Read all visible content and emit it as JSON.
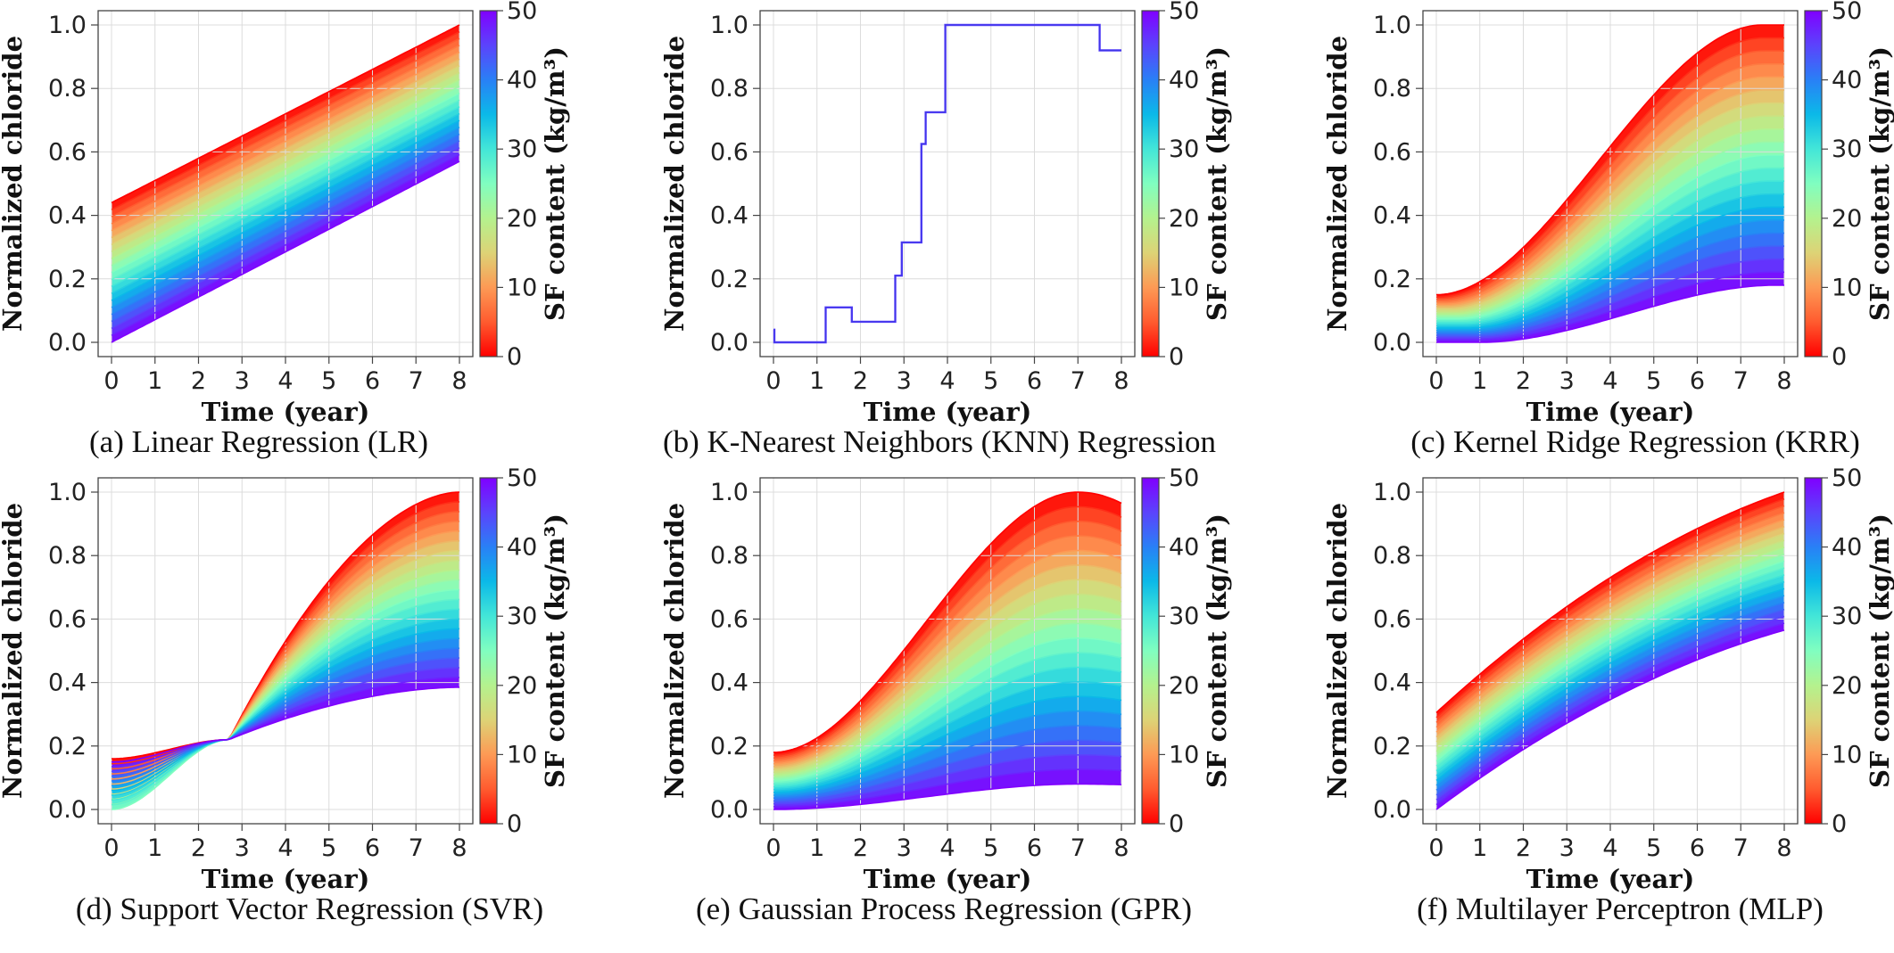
{
  "chart_data": [
    {
      "id": "lr",
      "type": "line",
      "caption": "(a) Linear Regression (LR)",
      "xlabel": "Time (year)",
      "ylabel": "Normalized chloride",
      "xlim": [
        0,
        8
      ],
      "ylim": [
        0,
        1
      ],
      "xticks": [
        "0",
        "1",
        "2",
        "3",
        "4",
        "5",
        "6",
        "7",
        "8"
      ],
      "yticks": [
        "0.0",
        "0.2",
        "0.4",
        "0.6",
        "0.8",
        "1.0"
      ],
      "grid": true,
      "colorbar": {
        "label": "SF content (kg/m³)",
        "min": 0,
        "max": 50,
        "ticks": [
          "0",
          "10",
          "20",
          "30",
          "40",
          "50"
        ],
        "colormap": "rainbow"
      },
      "curve_model": "linear",
      "series_params": {
        "sf_min": {
          "y0": 0.44,
          "y8": 1.0
        },
        "sf_max": {
          "y0": 0.0,
          "y8": 0.57
        }
      }
    },
    {
      "id": "knn",
      "type": "line",
      "caption": "(b) K-Nearest Neighbors (KNN) Regression",
      "xlabel": "Time (year)",
      "ylabel": "Normalized chloride",
      "xlim": [
        0,
        8
      ],
      "ylim": [
        0,
        1
      ],
      "xticks": [
        "0",
        "1",
        "2",
        "3",
        "4",
        "5",
        "6",
        "7",
        "8"
      ],
      "yticks": [
        "0.0",
        "0.2",
        "0.4",
        "0.6",
        "0.8",
        "1.0"
      ],
      "grid": true,
      "colorbar": {
        "label": "SF content (kg/m³)",
        "min": 0,
        "max": 50,
        "ticks": [
          "0",
          "10",
          "20",
          "30",
          "40",
          "50"
        ],
        "colormap": "rainbow"
      },
      "curve_model": "step",
      "step_points": [
        [
          0,
          0.04
        ],
        [
          0.02,
          0.04
        ],
        [
          0.02,
          0.0
        ],
        [
          1.2,
          0.0
        ],
        [
          1.2,
          0.11
        ],
        [
          1.8,
          0.11
        ],
        [
          1.8,
          0.065
        ],
        [
          2.8,
          0.065
        ],
        [
          2.8,
          0.21
        ],
        [
          2.95,
          0.21
        ],
        [
          2.95,
          0.315
        ],
        [
          3.4,
          0.315
        ],
        [
          3.4,
          0.625
        ],
        [
          3.5,
          0.625
        ],
        [
          3.5,
          0.725
        ],
        [
          3.95,
          0.725
        ],
        [
          3.95,
          1.0
        ],
        [
          7.5,
          1.0
        ],
        [
          7.5,
          0.92
        ],
        [
          8.0,
          0.92
        ]
      ]
    },
    {
      "id": "krr",
      "type": "line",
      "caption": "(c) Kernel Ridge Regression (KRR)",
      "xlabel": "Time (year)",
      "ylabel": "Normalized chloride",
      "xlim": [
        0,
        8
      ],
      "ylim": [
        0,
        1
      ],
      "xticks": [
        "0",
        "1",
        "2",
        "3",
        "4",
        "5",
        "6",
        "7",
        "8"
      ],
      "yticks": [
        "0.0",
        "0.2",
        "0.4",
        "0.6",
        "0.8",
        "1.0"
      ],
      "grid": true,
      "colorbar": {
        "label": "SF content (kg/m³)",
        "min": 0,
        "max": 50,
        "ticks": [
          "0",
          "10",
          "20",
          "30",
          "40",
          "50"
        ],
        "colormap": "rainbow"
      },
      "curve_model": "sigmoid",
      "series_params": {
        "sf_min": {
          "y0": 0.15,
          "ymax": 1.0,
          "peak_x": 7.5,
          "floor_until": 0
        },
        "sf_max": {
          "y0": 0.0,
          "ymax": 0.18,
          "peak_x": 7.8,
          "floor_until": 1.0
        }
      }
    },
    {
      "id": "svr",
      "type": "line",
      "caption": "(d) Support Vector Regression (SVR)",
      "xlabel": "Time (year)",
      "ylabel": "Normalized chloride",
      "xlim": [
        0,
        8
      ],
      "ylim": [
        0,
        1
      ],
      "xticks": [
        "0",
        "1",
        "2",
        "3",
        "4",
        "5",
        "6",
        "7",
        "8"
      ],
      "yticks": [
        "0.0",
        "0.2",
        "0.4",
        "0.6",
        "0.8",
        "1.0"
      ],
      "grid": true,
      "colorbar": {
        "label": "SF content (kg/m³)",
        "min": 0,
        "max": 50,
        "ticks": [
          "0",
          "10",
          "20",
          "30",
          "40",
          "50"
        ],
        "colormap": "rainbow"
      },
      "curve_model": "svr",
      "series_params": {
        "sf_min": {
          "y0": 0.16,
          "ymax": 1.0
        },
        "sf_max": {
          "y0": 0.15,
          "ymax": 0.385
        },
        "low_mid": {
          "y0": 0.0
        },
        "crossover": {
          "x": 2.7,
          "y": 0.22
        }
      }
    },
    {
      "id": "gpr",
      "type": "line",
      "caption": "(e) Gaussian Process Regression (GPR)",
      "xlabel": "Time (year)",
      "ylabel": "Normalized chloride",
      "xlim": [
        0,
        8
      ],
      "ylim": [
        0,
        1
      ],
      "xticks": [
        "0",
        "1",
        "2",
        "3",
        "4",
        "5",
        "6",
        "7",
        "8"
      ],
      "yticks": [
        "0.0",
        "0.2",
        "0.4",
        "0.6",
        "0.8",
        "1.0"
      ],
      "grid": true,
      "colorbar": {
        "label": "SF content (kg/m³)",
        "min": 0,
        "max": 50,
        "ticks": [
          "0",
          "10",
          "20",
          "30",
          "40",
          "50"
        ],
        "colormap": "rainbow"
      },
      "curve_model": "gpr",
      "series_params": {
        "sf_min": {
          "y0": 0.18,
          "ymax": 1.0,
          "peak_x": 7.0,
          "y8": 0.965
        },
        "sf_max": {
          "y0": 0.0,
          "ymax": 0.08,
          "peak_x": 7.0,
          "y8": 0.078
        }
      }
    },
    {
      "id": "mlp",
      "type": "line",
      "caption": "(f) Multilayer Perceptron (MLP)",
      "xlabel": "Time (year)",
      "ylabel": "Normalized chloride",
      "xlim": [
        0,
        8
      ],
      "ylim": [
        0,
        1
      ],
      "xticks": [
        "0",
        "1",
        "2",
        "3",
        "4",
        "5",
        "6",
        "7",
        "8"
      ],
      "yticks": [
        "0.0",
        "0.2",
        "0.4",
        "0.6",
        "0.8",
        "1.0"
      ],
      "grid": true,
      "colorbar": {
        "label": "SF content (kg/m³)",
        "min": 0,
        "max": 50,
        "ticks": [
          "0",
          "10",
          "20",
          "30",
          "40",
          "50"
        ],
        "colormap": "rainbow"
      },
      "curve_model": "concave",
      "series_params": {
        "sf_min": {
          "y0": 0.305,
          "y8": 1.0
        },
        "sf_max": {
          "y0": 0.0,
          "y8": 0.565
        }
      }
    }
  ]
}
